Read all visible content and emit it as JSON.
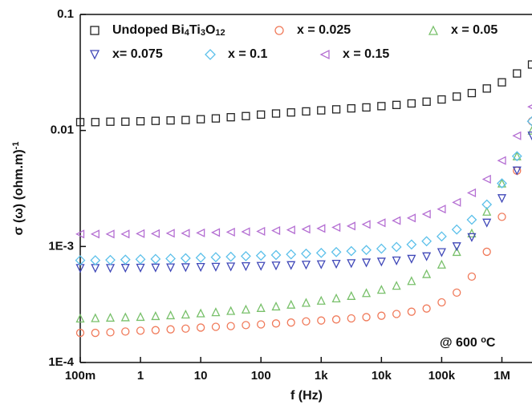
{
  "chart_data": {
    "type": "scatter",
    "xlabel": "f (Hz)",
    "ylabel": "σ (ω)  (ohm.m)-1",
    "annotation": "@ 600 oC",
    "log_x": true,
    "log_y": true,
    "xlim": [
      0.1,
      3160000
    ],
    "ylim": [
      0.0001,
      0.1
    ],
    "xticks": [
      {
        "value": 0.1,
        "label": "100m"
      },
      1,
      10,
      100,
      {
        "value": 1000,
        "label": "1k"
      },
      {
        "value": 10000,
        "label": "10k"
      },
      {
        "value": 100000,
        "label": "100k"
      },
      {
        "value": 1000000,
        "label": "1M"
      }
    ],
    "yticks": [
      {
        "value": 0.0001,
        "label": "1E-4"
      },
      {
        "value": 0.001,
        "label": "1E-3"
      },
      0.01,
      0.1
    ],
    "x": [
      0.1,
      0.178,
      0.316,
      0.562,
      1,
      1.78,
      3.16,
      5.62,
      10,
      17.8,
      31.6,
      56.2,
      100,
      178,
      316,
      562,
      1000,
      1780,
      3160,
      5620,
      10000,
      17800,
      31600,
      56200,
      100000,
      178000,
      316000,
      562000,
      1000000,
      1780000,
      3160000
    ],
    "series": [
      {
        "name": "Undoped Bi4Ti3O12",
        "color": "#222222",
        "marker": "square",
        "values": [
          0.0118,
          0.0118,
          0.0119,
          0.0119,
          0.012,
          0.0121,
          0.0122,
          0.0123,
          0.0125,
          0.0127,
          0.013,
          0.0133,
          0.0137,
          0.014,
          0.0143,
          0.0146,
          0.0149,
          0.0152,
          0.0155,
          0.0158,
          0.0162,
          0.0166,
          0.0171,
          0.0177,
          0.0185,
          0.0196,
          0.021,
          0.023,
          0.026,
          0.031,
          0.037
        ]
      },
      {
        "name": "x = 0.025",
        "color": "#f07a5a",
        "marker": "circle",
        "values": [
          0.00018,
          0.00018,
          0.000182,
          0.000185,
          0.000188,
          0.00019,
          0.000193,
          0.000196,
          0.0002,
          0.000203,
          0.000206,
          0.00021,
          0.000213,
          0.000217,
          0.000221,
          0.000226,
          0.00023,
          0.000235,
          0.00024,
          0.000246,
          0.000253,
          0.000262,
          0.000274,
          0.000292,
          0.00033,
          0.0004,
          0.00055,
          0.0009,
          0.0018,
          0.0045,
          0.012
        ]
      },
      {
        "name": "x = 0.05",
        "color": "#78c06a",
        "marker": "triangle-up",
        "values": [
          0.00024,
          0.000242,
          0.000244,
          0.000246,
          0.000248,
          0.000252,
          0.000256,
          0.00026,
          0.000266,
          0.000272,
          0.000279,
          0.000287,
          0.000296,
          0.000305,
          0.000316,
          0.000328,
          0.000342,
          0.000358,
          0.000376,
          0.000398,
          0.000425,
          0.00046,
          0.000505,
          0.00058,
          0.0007,
          0.0009,
          0.0013,
          0.002,
          0.0035,
          0.006,
          0.01
        ]
      },
      {
        "name": "x= 0.075",
        "color": "#4048b8",
        "marker": "triangle-down",
        "values": [
          0.00065,
          0.00065,
          0.00065,
          0.000652,
          0.000654,
          0.000656,
          0.000658,
          0.00066,
          0.000663,
          0.000666,
          0.00067,
          0.000674,
          0.000678,
          0.000683,
          0.000688,
          0.000694,
          0.0007,
          0.000707,
          0.000715,
          0.000725,
          0.000738,
          0.000755,
          0.00078,
          0.00082,
          0.00089,
          0.001,
          0.0012,
          0.0016,
          0.0026,
          0.0045,
          0.009
        ]
      },
      {
        "name": "x = 0.1",
        "color": "#5cc0ea",
        "marker": "diamond",
        "values": [
          0.00076,
          0.00076,
          0.000765,
          0.00077,
          0.000775,
          0.00078,
          0.000786,
          0.000792,
          0.0008,
          0.000808,
          0.000816,
          0.000825,
          0.000834,
          0.000844,
          0.000855,
          0.000867,
          0.00088,
          0.000895,
          0.000912,
          0.000932,
          0.000957,
          0.00099,
          0.00104,
          0.00111,
          0.00122,
          0.0014,
          0.0017,
          0.0023,
          0.0035,
          0.006,
          0.012
        ]
      },
      {
        "name": "x = 0.15",
        "color": "#b46ed2",
        "marker": "triangle-left",
        "values": [
          0.00128,
          0.00128,
          0.00128,
          0.00128,
          0.00129,
          0.00129,
          0.0013,
          0.0013,
          0.00131,
          0.00132,
          0.00133,
          0.00134,
          0.00135,
          0.00137,
          0.00139,
          0.00141,
          0.00143,
          0.00146,
          0.0015,
          0.00155,
          0.0016,
          0.00167,
          0.00176,
          0.0019,
          0.0021,
          0.0024,
          0.0029,
          0.0038,
          0.0055,
          0.009,
          0.016
        ]
      }
    ]
  }
}
